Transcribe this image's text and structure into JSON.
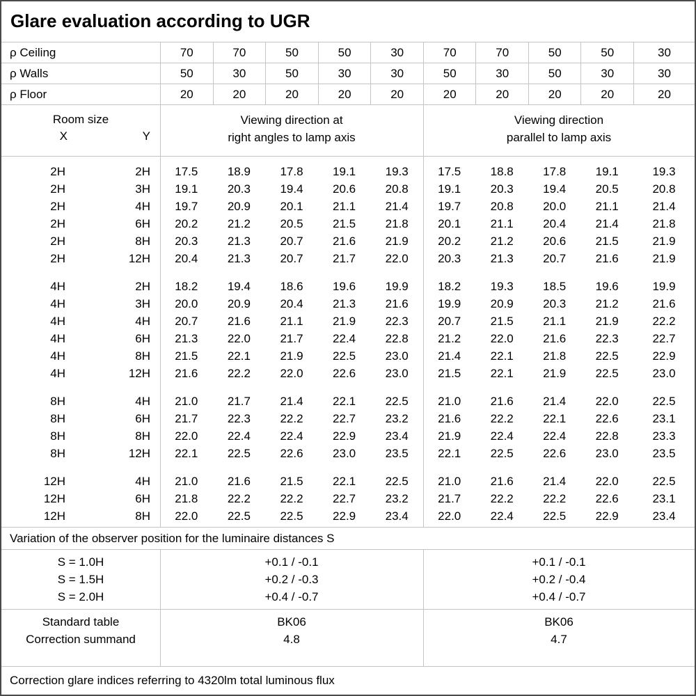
{
  "title": "Glare evaluation according to UGR",
  "colors": {
    "grid_line": "#c4c4c4",
    "outer_border": "#4a4a4a",
    "text": "#000000",
    "bg": "#ffffff"
  },
  "reflectance_rows": [
    {
      "label": "ρ Ceiling",
      "values": [
        "70",
        "70",
        "50",
        "50",
        "30",
        "70",
        "70",
        "50",
        "50",
        "30"
      ]
    },
    {
      "label": "ρ Walls",
      "values": [
        "50",
        "30",
        "50",
        "30",
        "30",
        "50",
        "30",
        "50",
        "30",
        "30"
      ]
    },
    {
      "label": "ρ Floor",
      "values": [
        "20",
        "20",
        "20",
        "20",
        "20",
        "20",
        "20",
        "20",
        "20",
        "20"
      ]
    }
  ],
  "room_header": {
    "room_size": "Room size",
    "x": "X",
    "y": "Y"
  },
  "viewing_headers": {
    "left": "Viewing direction at\nright angles to lamp axis",
    "right": "Viewing direction\nparallel to lamp axis"
  },
  "ugr_table": {
    "blocks": [
      {
        "rows": [
          {
            "x": "2H",
            "y": "2H",
            "left": [
              "17.5",
              "18.9",
              "17.8",
              "19.1",
              "19.3"
            ],
            "right": [
              "17.5",
              "18.8",
              "17.8",
              "19.1",
              "19.3"
            ]
          },
          {
            "x": "2H",
            "y": "3H",
            "left": [
              "19.1",
              "20.3",
              "19.4",
              "20.6",
              "20.8"
            ],
            "right": [
              "19.1",
              "20.3",
              "19.4",
              "20.5",
              "20.8"
            ]
          },
          {
            "x": "2H",
            "y": "4H",
            "left": [
              "19.7",
              "20.9",
              "20.1",
              "21.1",
              "21.4"
            ],
            "right": [
              "19.7",
              "20.8",
              "20.0",
              "21.1",
              "21.4"
            ]
          },
          {
            "x": "2H",
            "y": "6H",
            "left": [
              "20.2",
              "21.2",
              "20.5",
              "21.5",
              "21.8"
            ],
            "right": [
              "20.1",
              "21.1",
              "20.4",
              "21.4",
              "21.8"
            ]
          },
          {
            "x": "2H",
            "y": "8H",
            "left": [
              "20.3",
              "21.3",
              "20.7",
              "21.6",
              "21.9"
            ],
            "right": [
              "20.2",
              "21.2",
              "20.6",
              "21.5",
              "21.9"
            ]
          },
          {
            "x": "2H",
            "y": "12H",
            "left": [
              "20.4",
              "21.3",
              "20.7",
              "21.7",
              "22.0"
            ],
            "right": [
              "20.3",
              "21.3",
              "20.7",
              "21.6",
              "21.9"
            ]
          }
        ]
      },
      {
        "rows": [
          {
            "x": "4H",
            "y": "2H",
            "left": [
              "18.2",
              "19.4",
              "18.6",
              "19.6",
              "19.9"
            ],
            "right": [
              "18.2",
              "19.3",
              "18.5",
              "19.6",
              "19.9"
            ]
          },
          {
            "x": "4H",
            "y": "3H",
            "left": [
              "20.0",
              "20.9",
              "20.4",
              "21.3",
              "21.6"
            ],
            "right": [
              "19.9",
              "20.9",
              "20.3",
              "21.2",
              "21.6"
            ]
          },
          {
            "x": "4H",
            "y": "4H",
            "left": [
              "20.7",
              "21.6",
              "21.1",
              "21.9",
              "22.3"
            ],
            "right": [
              "20.7",
              "21.5",
              "21.1",
              "21.9",
              "22.2"
            ]
          },
          {
            "x": "4H",
            "y": "6H",
            "left": [
              "21.3",
              "22.0",
              "21.7",
              "22.4",
              "22.8"
            ],
            "right": [
              "21.2",
              "22.0",
              "21.6",
              "22.3",
              "22.7"
            ]
          },
          {
            "x": "4H",
            "y": "8H",
            "left": [
              "21.5",
              "22.1",
              "21.9",
              "22.5",
              "23.0"
            ],
            "right": [
              "21.4",
              "22.1",
              "21.8",
              "22.5",
              "22.9"
            ]
          },
          {
            "x": "4H",
            "y": "12H",
            "left": [
              "21.6",
              "22.2",
              "22.0",
              "22.6",
              "23.0"
            ],
            "right": [
              "21.5",
              "22.1",
              "21.9",
              "22.5",
              "23.0"
            ]
          }
        ]
      },
      {
        "rows": [
          {
            "x": "8H",
            "y": "4H",
            "left": [
              "21.0",
              "21.7",
              "21.4",
              "22.1",
              "22.5"
            ],
            "right": [
              "21.0",
              "21.6",
              "21.4",
              "22.0",
              "22.5"
            ]
          },
          {
            "x": "8H",
            "y": "6H",
            "left": [
              "21.7",
              "22.3",
              "22.2",
              "22.7",
              "23.2"
            ],
            "right": [
              "21.6",
              "22.2",
              "22.1",
              "22.6",
              "23.1"
            ]
          },
          {
            "x": "8H",
            "y": "8H",
            "left": [
              "22.0",
              "22.4",
              "22.4",
              "22.9",
              "23.4"
            ],
            "right": [
              "21.9",
              "22.4",
              "22.4",
              "22.8",
              "23.3"
            ]
          },
          {
            "x": "8H",
            "y": "12H",
            "left": [
              "22.1",
              "22.5",
              "22.6",
              "23.0",
              "23.5"
            ],
            "right": [
              "22.1",
              "22.5",
              "22.6",
              "23.0",
              "23.5"
            ]
          }
        ]
      },
      {
        "rows": [
          {
            "x": "12H",
            "y": "4H",
            "left": [
              "21.0",
              "21.6",
              "21.5",
              "22.1",
              "22.5"
            ],
            "right": [
              "21.0",
              "21.6",
              "21.4",
              "22.0",
              "22.5"
            ]
          },
          {
            "x": "12H",
            "y": "6H",
            "left": [
              "21.8",
              "22.2",
              "22.2",
              "22.7",
              "23.2"
            ],
            "right": [
              "21.7",
              "22.2",
              "22.2",
              "22.6",
              "23.1"
            ]
          },
          {
            "x": "12H",
            "y": "8H",
            "left": [
              "22.0",
              "22.5",
              "22.5",
              "22.9",
              "23.4"
            ],
            "right": [
              "22.0",
              "22.4",
              "22.5",
              "22.9",
              "23.4"
            ]
          }
        ]
      }
    ]
  },
  "variation_note": "Variation of the observer position for the luminaire distances S",
  "s_rows": [
    {
      "label": "S = 1.0H",
      "left": "+0.1 / -0.1",
      "right": "+0.1 / -0.1"
    },
    {
      "label": "S = 1.5H",
      "left": "+0.2 / -0.3",
      "right": "+0.2 / -0.4"
    },
    {
      "label": "S = 2.0H",
      "left": "+0.4 / -0.7",
      "right": "+0.4 / -0.7"
    }
  ],
  "standard_rows": [
    {
      "label": "Standard table",
      "left": "BK06",
      "right": "BK06"
    },
    {
      "label": "Correction summand",
      "left": "4.8",
      "right": "4.7"
    }
  ],
  "footer_note": "Correction glare indices referring to 4320lm total luminous flux"
}
